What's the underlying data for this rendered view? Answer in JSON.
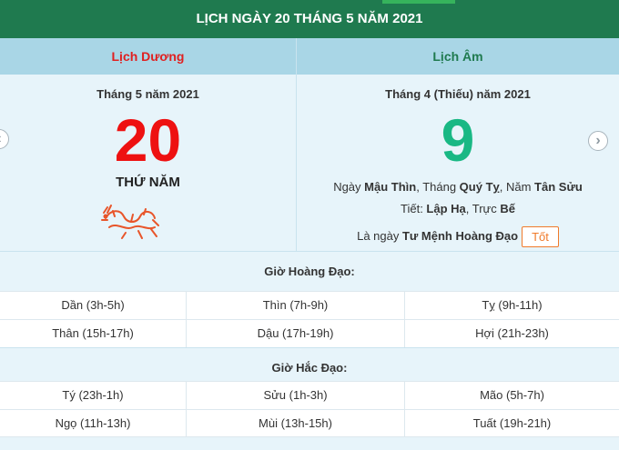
{
  "header": {
    "title": "LỊCH NGÀY 20 THÁNG 5 NĂM 2021"
  },
  "columns": {
    "solar_label": "Lịch Dương",
    "lunar_label": "Lịch Âm"
  },
  "solar": {
    "month_line": "Tháng 5 năm 2021",
    "day": "20",
    "weekday": "THỨ NĂM"
  },
  "lunar": {
    "month_line": "Tháng 4 (Thiếu) năm 2021",
    "day": "9",
    "ngay_prefix": "Ngày ",
    "ngay_value": "Mậu Thìn",
    "thang_prefix": ", Tháng ",
    "thang_value": "Quý Tỵ",
    "nam_prefix": ", Năm ",
    "nam_value": "Tân Sửu",
    "tiet_prefix": "Tiết: ",
    "tiet_value": "Lập Hạ",
    "truc_prefix": ", Trực ",
    "truc_value": "Bế",
    "la_ngay_prefix": "Là ngày ",
    "la_ngay_value": "Tư Mệnh Hoàng Đạo",
    "badge": "Tốt"
  },
  "nav": {
    "prev_icon": "‹",
    "next_icon": "›"
  },
  "hoang_dao": {
    "title": "Giờ Hoàng Đạo:",
    "rows": [
      [
        "Dần (3h-5h)",
        "Thìn (7h-9h)",
        "Tỵ (9h-11h)"
      ],
      [
        "Thân (15h-17h)",
        "Dậu (17h-19h)",
        "Hợi (21h-23h)"
      ]
    ]
  },
  "hac_dao": {
    "title": "Giờ Hắc Đạo:",
    "rows": [
      [
        "Tý (23h-1h)",
        "Sửu (1h-3h)",
        "Mão (5h-7h)"
      ],
      [
        "Ngọ (11h-13h)",
        "Mùi (13h-15h)",
        "Tuất (19h-21h)"
      ]
    ]
  },
  "colors": {
    "header_bg": "#1f7a4f",
    "solar_red": "#ee1111",
    "lunar_green": "#19b884",
    "badge_orange": "#f07a2a",
    "panel_bg": "#e7f4fa"
  },
  "icons": {
    "zodiac": "dragon-icon"
  }
}
